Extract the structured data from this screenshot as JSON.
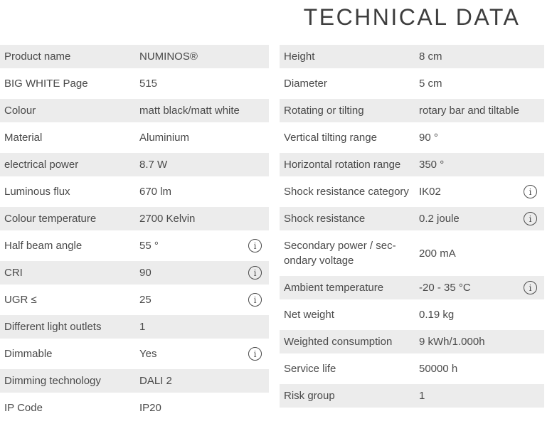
{
  "page": {
    "title": "TECHNICAL DATA"
  },
  "colors": {
    "row_shaded": "#ececec",
    "text": "#4a4a4a",
    "title": "#3e3e3e"
  },
  "icons": {
    "info": "i"
  },
  "tables": {
    "left": {
      "rows": [
        {
          "label": "Product name",
          "value": "NUMINOS®",
          "info": false
        },
        {
          "label": "BIG WHITE Page",
          "value": "515",
          "info": false
        },
        {
          "label": "Colour",
          "value": "matt black/matt white",
          "info": false
        },
        {
          "label": "Material",
          "value": "Aluminium",
          "info": false
        },
        {
          "label": "electrical power",
          "value": "8.7 W",
          "info": false
        },
        {
          "label": "Luminous flux",
          "value": "670 lm",
          "info": false
        },
        {
          "label": "Colour temperature",
          "value": "2700 Kelvin",
          "info": false
        },
        {
          "label": "Half beam angle",
          "value": "55 °",
          "info": true
        },
        {
          "label": "CRI",
          "value": "90",
          "info": true
        },
        {
          "label": "UGR ≤",
          "value": "25",
          "info": true
        },
        {
          "label": "Different light outlets",
          "value": "1",
          "info": false
        },
        {
          "label": "Dimmable",
          "value": "Yes",
          "info": true
        },
        {
          "label": "Dimming technology",
          "value": "DALI 2",
          "info": false
        },
        {
          "label": "IP Code",
          "value": "IP20",
          "info": false
        }
      ]
    },
    "right": {
      "rows": [
        {
          "label": "Height",
          "value": "8 cm",
          "info": false
        },
        {
          "label": "Diameter",
          "value": "5 cm",
          "info": false
        },
        {
          "label": "Rotating or tilting",
          "value": "rotary bar and tiltable",
          "info": false
        },
        {
          "label": "Vertical tilting range",
          "value": "90 °",
          "info": false
        },
        {
          "label": "Horizontal rotation range",
          "value": "350 °",
          "info": false
        },
        {
          "label": "Shock resistance category",
          "value": "IK02",
          "info": true
        },
        {
          "label": "Shock resistance",
          "value": "0.2 joule",
          "info": true
        },
        {
          "label": "Secondary power / sec­ondary voltage",
          "value": "200 mA",
          "info": false
        },
        {
          "label": "Ambient temperature",
          "value": "-20 - 35 °C",
          "info": true
        },
        {
          "label": "Net weight",
          "value": "0.19 kg",
          "info": false
        },
        {
          "label": "Weighted consumption",
          "value": "9 kWh/1.000h",
          "info": false
        },
        {
          "label": "Service life",
          "value": "50000 h",
          "info": false
        },
        {
          "label": "Risk group",
          "value": "1",
          "info": false
        }
      ]
    }
  }
}
